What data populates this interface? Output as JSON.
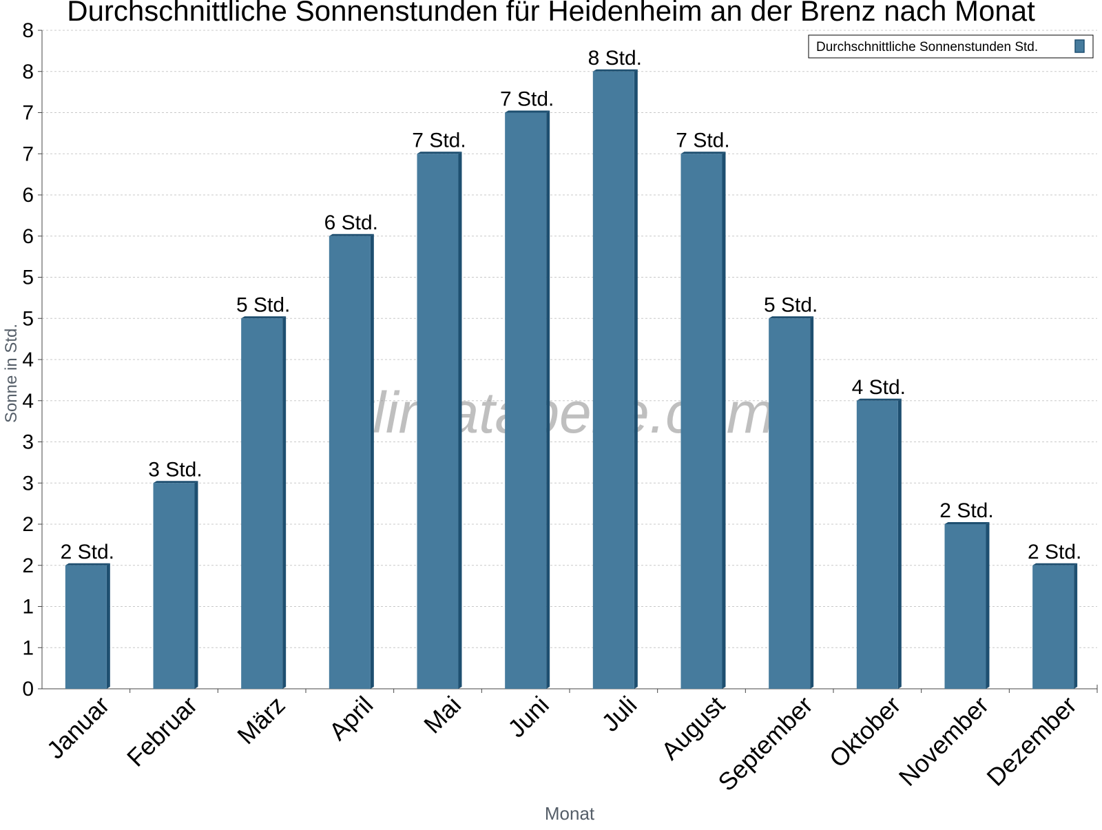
{
  "chart_data": {
    "type": "bar",
    "title": "Durchschnittliche Sonnenstunden für Heidenheim an der Brenz nach Monat",
    "xlabel": "Monat",
    "ylabel": "Sonne in Std.",
    "categories": [
      "Januar",
      "Februar",
      "März",
      "April",
      "Mai",
      "Juni",
      "Juli",
      "August",
      "September",
      "Oktober",
      "November",
      "Dezember"
    ],
    "series": [
      {
        "name": "Durchschnittliche Sonnenstunden Std.",
        "values": [
          1.5,
          2.5,
          4.5,
          5.5,
          6.5,
          7.0,
          7.5,
          6.5,
          4.5,
          3.5,
          2.0,
          1.5
        ],
        "data_labels": [
          "2 Std.",
          "3 Std.",
          "5 Std.",
          "6 Std.",
          "7 Std.",
          "7 Std.",
          "8 Std.",
          "7 Std.",
          "5 Std.",
          "4 Std.",
          "2 Std.",
          "2 Std."
        ]
      }
    ],
    "ylim": [
      0,
      8.0
    ],
    "yticks": [
      0,
      0.5,
      1,
      1.5,
      2,
      2.5,
      3,
      3.5,
      4,
      4.5,
      5,
      5.5,
      6,
      6.5,
      7,
      7.5,
      8
    ],
    "ytick_labels": [
      "0",
      "1",
      "1",
      "2",
      "2",
      "3",
      "3",
      "4",
      "4",
      "5",
      "5",
      "6",
      "6",
      "7",
      "7",
      "8",
      "8"
    ],
    "grid": true,
    "legend_position": "top-right",
    "watermark": "klimatabelle.com",
    "colors": {
      "bar": "#467b9d",
      "bar_side": "#1e4f70",
      "bar_top": "#1e4f70",
      "grid": "#c8c8c8",
      "axis": "#444444",
      "label_gray": "#555e68"
    }
  }
}
